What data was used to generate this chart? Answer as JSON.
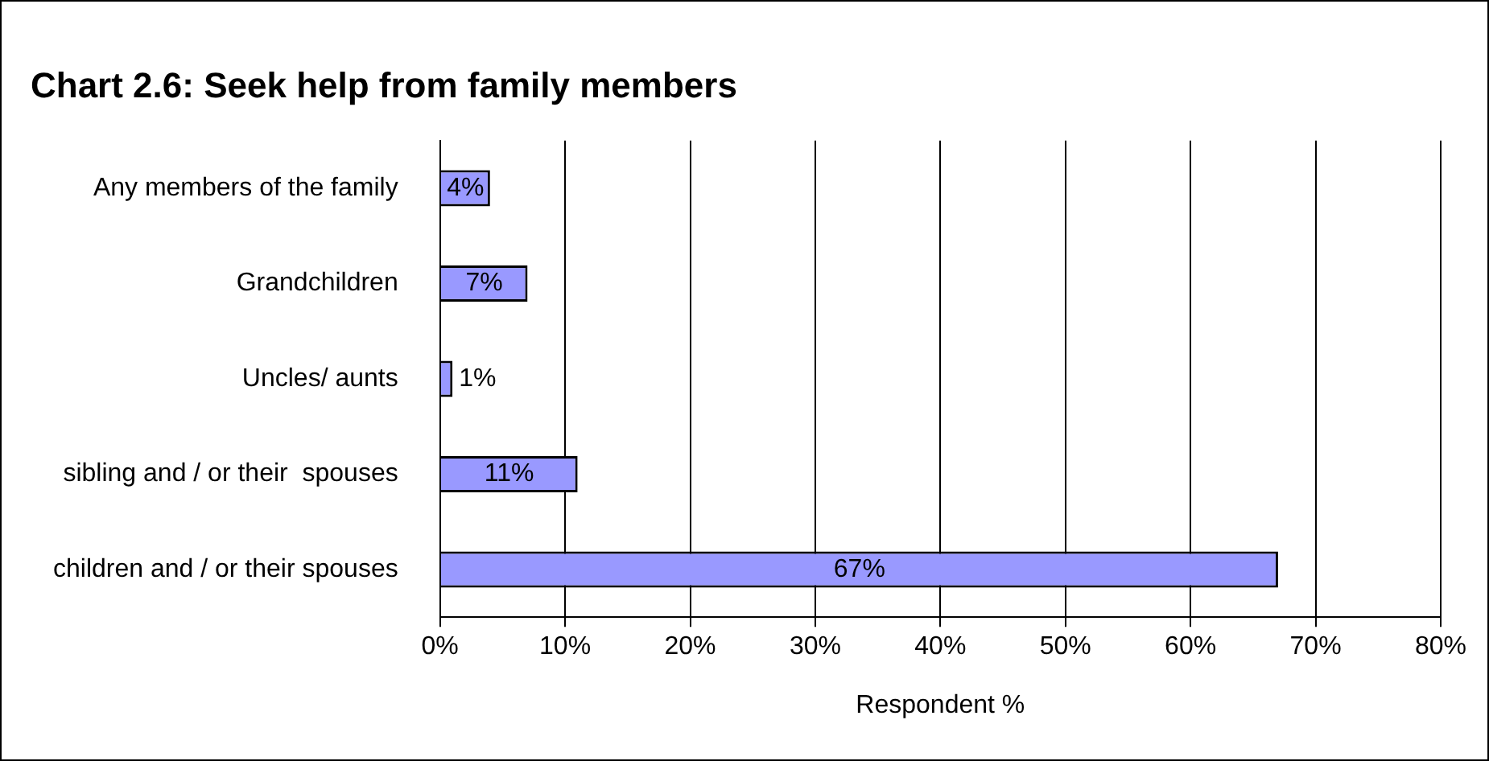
{
  "chart_data": {
    "type": "bar",
    "orientation": "horizontal",
    "title": "Chart 2.6: Seek help from family members",
    "xlabel": "Respondent %",
    "categories": [
      "Any members of the family",
      "Grandchildren",
      "Uncles/ aunts",
      "sibling and / or their  spouses",
      "children and / or their spouses"
    ],
    "values": [
      4,
      7,
      1,
      11,
      67
    ],
    "value_labels": [
      "4%",
      "7%",
      "1%",
      "11%",
      "67%"
    ],
    "color": "#9999ff",
    "xlim": [
      0,
      80
    ],
    "xticks": [
      {
        "value": 0,
        "label": "0%"
      },
      {
        "value": 10,
        "label": "10%"
      },
      {
        "value": 20,
        "label": "20%"
      },
      {
        "value": 30,
        "label": "30%"
      },
      {
        "value": 40,
        "label": "40%"
      },
      {
        "value": 50,
        "label": "50%"
      },
      {
        "value": 60,
        "label": "60%"
      },
      {
        "value": 70,
        "label": "70%"
      },
      {
        "value": 80,
        "label": "80%"
      }
    ],
    "grid": "x",
    "legend": false
  }
}
